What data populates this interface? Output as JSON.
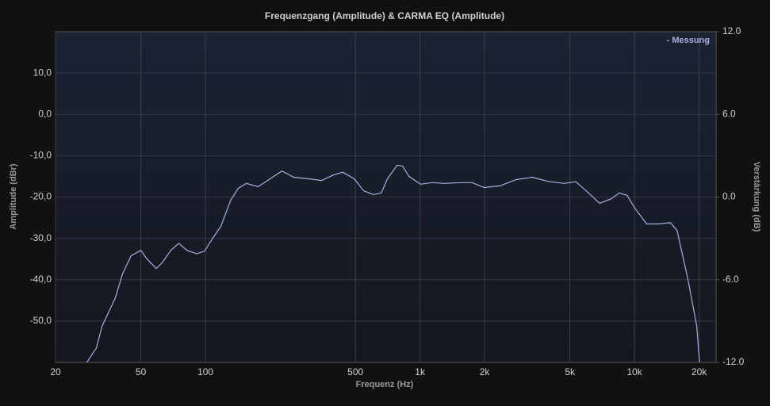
{
  "chart_data": {
    "type": "line",
    "title": "Frequenzgang (Amplitude) & CARMA EQ (Amplitude)",
    "x_label": "Frequenz (Hz)",
    "y_label": "Amplitude (dBr)",
    "y2_label": "Verstärkung (dB)",
    "log_x": true,
    "grid": true,
    "legend": "top-right",
    "x": [
      28,
      31,
      33,
      38,
      41,
      45,
      50,
      53,
      59,
      63,
      69,
      75,
      82,
      91,
      99,
      108,
      118,
      131,
      142,
      155,
      176,
      200,
      227,
      258,
      306,
      348,
      396,
      437,
      494,
      547,
      607,
      660,
      705,
      782,
      830,
      888,
      1006,
      1140,
      1300,
      1540,
      1750,
      1990,
      2360,
      2800,
      3330,
      3950,
      4690,
      5330,
      6040,
      6880,
      7810,
      8490,
      9240,
      10030,
      11400,
      12930,
      14700,
      15790,
      17700,
      19500,
      20100
    ],
    "series": [
      {
        "name": "- Messung",
        "color": "#a9aee0",
        "values": [
          -60,
          -56.5,
          -51.2,
          -44.4,
          -38.7,
          -34.2,
          -32.9,
          -34.8,
          -37.3,
          -35.8,
          -32.9,
          -31.2,
          -32.9,
          -33.7,
          -33.1,
          -30.0,
          -27.1,
          -20.8,
          -17.9,
          -16.7,
          -17.5,
          -15.6,
          -13.7,
          -15.2,
          -15.6,
          -16.0,
          -14.6,
          -14.0,
          -15.6,
          -18.5,
          -19.4,
          -19.0,
          -15.6,
          -12.3,
          -12.5,
          -15.0,
          -16.9,
          -16.5,
          -16.7,
          -16.5,
          -16.5,
          -17.7,
          -17.3,
          -15.8,
          -15.2,
          -16.2,
          -16.7,
          -16.3,
          -18.8,
          -21.5,
          -20.4,
          -19.0,
          -19.6,
          -22.7,
          -26.5,
          -26.5,
          -26.2,
          -28.1,
          -39.6,
          -51.2,
          -60
        ]
      }
    ],
    "xlim": [
      20,
      24000
    ],
    "xticks": [
      20,
      50,
      100,
      500,
      {
        "value": 1000,
        "label": "1k"
      },
      {
        "value": 2000,
        "label": "2k"
      },
      {
        "value": 5000,
        "label": "5k"
      },
      {
        "value": 10000,
        "label": "10k"
      },
      {
        "value": 20000,
        "label": "20k"
      }
    ],
    "ylim": [
      -60,
      20
    ],
    "yticks": [
      {
        "value": -50,
        "label": "-50,0"
      },
      {
        "value": -40,
        "label": "-40,0"
      },
      {
        "value": -30,
        "label": "-30,0"
      },
      {
        "value": -20,
        "label": "-20,0"
      },
      {
        "value": -10,
        "label": "-10,0"
      },
      {
        "value": 0,
        "label": "0,0"
      },
      {
        "value": 10,
        "label": "10,0"
      }
    ],
    "y2lim": [
      -12,
      12
    ],
    "y2ticks": [
      {
        "value": -12,
        "label": "-12.0"
      },
      {
        "value": -6,
        "label": "-6.0"
      },
      {
        "value": 0,
        "label": "0.0"
      },
      {
        "value": 6,
        "label": "6.0"
      },
      {
        "value": 12,
        "label": "12.0"
      }
    ]
  }
}
